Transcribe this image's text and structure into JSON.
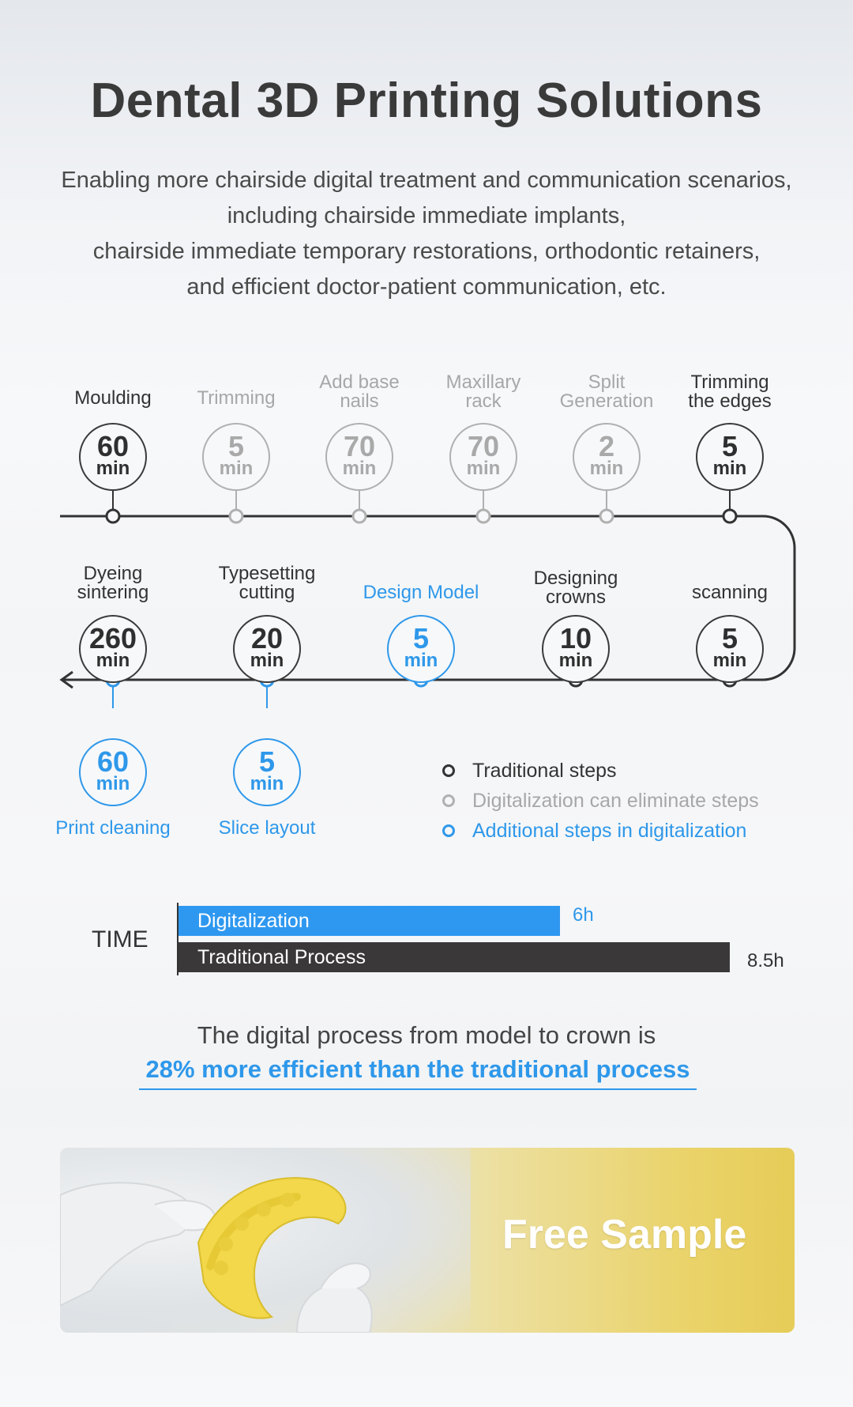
{
  "title": "Dental 3D Printing Solutions",
  "subtitle": {
    "line1": "Enabling more chairside digital treatment and communication scenarios,",
    "line2": "including chairside immediate implants,",
    "line3": "chairside immediate temporary restorations, orthodontic retainers,",
    "line4": "and efficient doctor-patient communication, etc."
  },
  "colors": {
    "traditional": "#333333",
    "eliminated": "#a9a9a9",
    "additional": "#2e98ea"
  },
  "steps_row1": [
    {
      "label1": "Moulding",
      "label2": "",
      "value": "60",
      "unit": "min",
      "type": "traditional"
    },
    {
      "label1": "Trimming",
      "label2": "",
      "value": "5",
      "unit": "min",
      "type": "eliminated"
    },
    {
      "label1": "Add base",
      "label2": "nails",
      "value": "70",
      "unit": "min",
      "type": "eliminated"
    },
    {
      "label1": "Maxillary",
      "label2": "rack",
      "value": "70",
      "unit": "min",
      "type": "eliminated"
    },
    {
      "label1": "Split",
      "label2": "Generation",
      "value": "2",
      "unit": "min",
      "type": "eliminated"
    },
    {
      "label1": "Trimming",
      "label2": "the edges",
      "value": "5",
      "unit": "min",
      "type": "traditional"
    }
  ],
  "steps_row2": [
    {
      "label1": "Dyeing",
      "label2": "sintering",
      "value": "260",
      "unit": "min",
      "type": "traditional"
    },
    {
      "label1": "Typesetting",
      "label2": "cutting",
      "value": "20",
      "unit": "min",
      "type": "traditional"
    },
    {
      "label1": "Design Model",
      "label2": "",
      "value": "5",
      "unit": "min",
      "type": "additional"
    },
    {
      "label1": "Designing",
      "label2": "crowns",
      "value": "10",
      "unit": "min",
      "type": "traditional"
    },
    {
      "label1": "scanning",
      "label2": "",
      "value": "5",
      "unit": "min",
      "type": "traditional"
    }
  ],
  "steps_row3": [
    {
      "label1": "Print cleaning",
      "value": "60",
      "unit": "min",
      "type": "additional"
    },
    {
      "label1": "Slice layout",
      "value": "5",
      "unit": "min",
      "type": "additional"
    }
  ],
  "legend": [
    {
      "label": "Traditional steps",
      "type": "traditional"
    },
    {
      "label": "Digitalization can eliminate steps",
      "type": "eliminated"
    },
    {
      "label": "Additional steps in digitalization",
      "type": "additional"
    }
  ],
  "time_chart": {
    "axis_label": "TIME",
    "bars": [
      {
        "label": "Digitalization",
        "value_text": "6h",
        "hours": 6
      },
      {
        "label": "Traditional Process",
        "value_text": "8.5h",
        "hours": 8.5
      }
    ]
  },
  "conclusion": {
    "text": "The digital process from model to crown is",
    "highlight": "28% more efficient than the traditional process"
  },
  "banner": {
    "text": "Free Sample"
  }
}
